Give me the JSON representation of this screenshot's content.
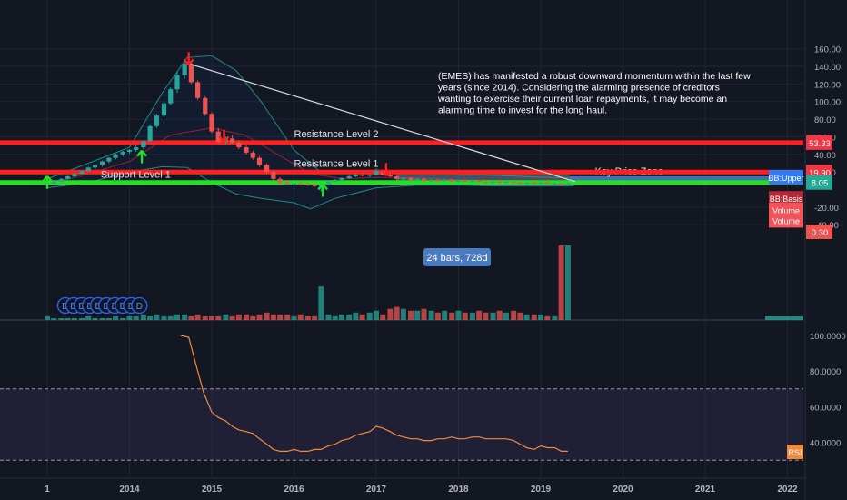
{
  "chart_data": {
    "type": "candlestick",
    "price_axis": {
      "ticks": [
        "160.00",
        "140.00",
        "120.00",
        "100.00",
        "80.00",
        "60.00",
        "40.00",
        "20.00",
        "-20.00",
        "-40.00"
      ],
      "badges": [
        {
          "label": "53.33",
          "value": 53.33,
          "color": "#f23645"
        },
        {
          "label": "19.90",
          "value": 19.9,
          "color": "#f23645"
        },
        {
          "label": "8.05",
          "value": 8.05,
          "color": "#22ab94"
        },
        {
          "label": "0.30",
          "value": -48,
          "color": "#ef5350"
        }
      ],
      "side_labels": [
        {
          "label": "BB:Upper",
          "color": "#3179f5",
          "value": 14
        },
        {
          "label": "BB:Basis",
          "color": "#b22833",
          "value": -10
        },
        {
          "label": "Volume",
          "color": "#f0545a",
          "value": -23
        },
        {
          "label": "Volume",
          "color": "#f0545a",
          "value": -35
        }
      ]
    },
    "time_axis": {
      "ticks": [
        {
          "label": "1",
          "t": 2013.0
        },
        {
          "label": "2014",
          "t": 2014.0
        },
        {
          "label": "2015",
          "t": 2015.0
        },
        {
          "label": "2016",
          "t": 2016.0
        },
        {
          "label": "2017",
          "t": 2017.0
        },
        {
          "label": "2018",
          "t": 2018.0
        },
        {
          "label": "2019",
          "t": 2019.0
        },
        {
          "label": "2020",
          "t": 2020.0
        },
        {
          "label": "2021",
          "t": 2021.0
        },
        {
          "label": "2022",
          "t": 2022.0
        }
      ]
    },
    "levels": [
      {
        "name": "Resistance Level 2",
        "value": 53.33,
        "color": "#ff1f1f"
      },
      {
        "name": "Resistance Level 1",
        "value": 19.9,
        "color": "#ff1f1f"
      },
      {
        "name": "Support Level 1",
        "value": 8.05,
        "color": "#22e022"
      }
    ],
    "zone": {
      "name": "Key Price Zone",
      "t_start": 2017.25,
      "t_end": 2019.35,
      "low": 8,
      "high": 19
    },
    "measure_label": "24 bars, 728d",
    "annotation": "(EMES) has manifested a robust downward momentum within the last few years (since 2014). Considering the alarming presence of creditors wanting to exercise their current loan repayments, it may become an alarming time to invest for the long haul.",
    "trendline": {
      "t1": 2014.72,
      "p1": 143,
      "t2": 2019.42,
      "p2": 9
    },
    "arrows_down": [
      {
        "t": 2014.72,
        "p": 150
      },
      {
        "t": 2015.15,
        "p": 62
      },
      {
        "t": 2017.12,
        "p": 24
      }
    ],
    "arrows_up": [
      {
        "t": 2013.0,
        "p": 7
      },
      {
        "t": 2014.15,
        "p": 36
      },
      {
        "t": 2016.35,
        "p": -2
      }
    ],
    "dividend_markers": {
      "label": "D",
      "t_start": 2013.22,
      "step": 0.1,
      "count": 10
    },
    "candles_monthly": [
      [
        2013.0,
        6,
        8,
        5,
        7
      ],
      [
        2013.08,
        7,
        10,
        6,
        9
      ],
      [
        2013.17,
        9,
        13,
        8,
        12
      ],
      [
        2013.25,
        12,
        16,
        11,
        15
      ],
      [
        2013.33,
        15,
        19,
        14,
        18
      ],
      [
        2013.42,
        18,
        22,
        17,
        21
      ],
      [
        2013.5,
        21,
        26,
        20,
        25
      ],
      [
        2013.58,
        25,
        29,
        23,
        28
      ],
      [
        2013.67,
        28,
        33,
        26,
        32
      ],
      [
        2013.75,
        32,
        37,
        30,
        36
      ],
      [
        2013.83,
        36,
        41,
        34,
        40
      ],
      [
        2013.92,
        40,
        44,
        38,
        43
      ],
      [
        2014.0,
        43,
        46,
        41,
        45
      ],
      [
        2014.08,
        45,
        50,
        43,
        48
      ],
      [
        2014.17,
        48,
        56,
        46,
        55
      ],
      [
        2014.25,
        55,
        74,
        53,
        72
      ],
      [
        2014.33,
        72,
        86,
        70,
        84
      ],
      [
        2014.42,
        84,
        100,
        82,
        98
      ],
      [
        2014.5,
        98,
        116,
        96,
        114
      ],
      [
        2014.58,
        114,
        134,
        110,
        130
      ],
      [
        2014.67,
        130,
        145,
        126,
        143
      ],
      [
        2014.75,
        143,
        145,
        120,
        122
      ],
      [
        2014.83,
        122,
        124,
        102,
        104
      ],
      [
        2014.92,
        104,
        106,
        84,
        86
      ],
      [
        2015.0,
        86,
        88,
        64,
        66
      ],
      [
        2015.08,
        66,
        70,
        52,
        54
      ],
      [
        2015.17,
        54,
        60,
        50,
        58
      ],
      [
        2015.25,
        58,
        62,
        52,
        53
      ],
      [
        2015.33,
        53,
        56,
        46,
        48
      ],
      [
        2015.42,
        48,
        50,
        40,
        42
      ],
      [
        2015.5,
        42,
        44,
        34,
        36
      ],
      [
        2015.58,
        36,
        38,
        26,
        28
      ],
      [
        2015.67,
        28,
        30,
        18,
        20
      ],
      [
        2015.75,
        20,
        22,
        10,
        12
      ],
      [
        2015.83,
        12,
        14,
        6,
        8
      ],
      [
        2015.92,
        8,
        10,
        5,
        6
      ],
      [
        2016.0,
        6,
        8,
        4,
        7
      ],
      [
        2016.08,
        7,
        9,
        5,
        6
      ],
      [
        2016.17,
        6,
        8,
        4,
        5
      ],
      [
        2016.25,
        5,
        7,
        3,
        4
      ],
      [
        2016.33,
        4,
        7,
        -2,
        6
      ],
      [
        2016.42,
        6,
        10,
        5,
        9
      ],
      [
        2016.5,
        9,
        12,
        8,
        11
      ],
      [
        2016.58,
        11,
        14,
        10,
        13
      ],
      [
        2016.67,
        13,
        16,
        12,
        15
      ],
      [
        2016.75,
        15,
        18,
        14,
        17
      ],
      [
        2016.83,
        17,
        19,
        15,
        16
      ],
      [
        2016.92,
        16,
        18,
        14,
        17
      ],
      [
        2017.0,
        17,
        24,
        16,
        21
      ],
      [
        2017.08,
        21,
        22,
        16,
        17
      ],
      [
        2017.17,
        17,
        19,
        14,
        15
      ],
      [
        2017.25,
        15,
        16,
        11,
        12
      ],
      [
        2017.33,
        12,
        14,
        10,
        13
      ],
      [
        2017.42,
        13,
        14,
        10,
        11
      ],
      [
        2017.5,
        11,
        13,
        9,
        12
      ],
      [
        2017.58,
        12,
        13,
        9,
        10
      ],
      [
        2017.67,
        10,
        12,
        8,
        11
      ],
      [
        2017.75,
        11,
        12,
        9,
        10
      ],
      [
        2017.83,
        10,
        12,
        8,
        11
      ],
      [
        2017.92,
        11,
        12,
        8,
        9
      ],
      [
        2018.0,
        9,
        11,
        8,
        10
      ],
      [
        2018.08,
        10,
        11,
        8,
        9
      ],
      [
        2018.17,
        9,
        11,
        7,
        10
      ],
      [
        2018.25,
        10,
        11,
        8,
        9
      ],
      [
        2018.33,
        9,
        10,
        7,
        8
      ],
      [
        2018.42,
        8,
        10,
        7,
        9
      ],
      [
        2018.5,
        9,
        10,
        7,
        8
      ],
      [
        2018.58,
        8,
        10,
        7,
        9
      ],
      [
        2018.67,
        9,
        10,
        7,
        8
      ],
      [
        2018.75,
        8,
        9,
        6,
        7
      ],
      [
        2018.83,
        7,
        9,
        6,
        8
      ],
      [
        2018.92,
        8,
        9,
        6,
        7
      ],
      [
        2019.0,
        7,
        9,
        6,
        8
      ],
      [
        2019.08,
        8,
        9,
        6,
        7
      ],
      [
        2019.17,
        7,
        8,
        6,
        7
      ],
      [
        2019.25,
        7,
        8,
        5,
        6
      ],
      [
        2019.33,
        6,
        8,
        5,
        7
      ]
    ],
    "bb_upper": [
      [
        2013.0,
        12
      ],
      [
        2013.5,
        30
      ],
      [
        2014.0,
        48
      ],
      [
        2014.4,
        110
      ],
      [
        2014.7,
        150
      ],
      [
        2015.0,
        152
      ],
      [
        2015.3,
        135
      ],
      [
        2015.6,
        100
      ],
      [
        2016.0,
        45
      ],
      [
        2016.3,
        22
      ],
      [
        2016.6,
        20
      ],
      [
        2017.0,
        22
      ],
      [
        2017.5,
        20
      ],
      [
        2018.0,
        18
      ],
      [
        2018.5,
        16
      ],
      [
        2019.0,
        14
      ],
      [
        2019.4,
        13
      ]
    ],
    "bb_basis": [
      [
        2013.0,
        6
      ],
      [
        2013.5,
        18
      ],
      [
        2014.0,
        32
      ],
      [
        2014.5,
        62
      ],
      [
        2015.0,
        70
      ],
      [
        2015.4,
        62
      ],
      [
        2015.8,
        40
      ],
      [
        2016.2,
        18
      ],
      [
        2016.6,
        12
      ],
      [
        2017.0,
        14
      ],
      [
        2017.5,
        13
      ],
      [
        2018.0,
        11
      ],
      [
        2018.5,
        10
      ],
      [
        2019.0,
        8
      ],
      [
        2019.4,
        8
      ]
    ],
    "bb_lower": [
      [
        2013.0,
        2
      ],
      [
        2013.5,
        8
      ],
      [
        2014.0,
        20
      ],
      [
        2014.4,
        26
      ],
      [
        2014.7,
        25
      ],
      [
        2015.0,
        8
      ],
      [
        2015.3,
        -5
      ],
      [
        2015.6,
        -10
      ],
      [
        2016.0,
        -15
      ],
      [
        2016.2,
        -22
      ],
      [
        2016.5,
        -10
      ],
      [
        2017.0,
        2
      ],
      [
        2017.5,
        5
      ],
      [
        2018.0,
        5
      ],
      [
        2018.5,
        4
      ],
      [
        2019.0,
        4
      ],
      [
        2019.4,
        4
      ]
    ],
    "volume": [
      2,
      1,
      1,
      1,
      1,
      1,
      2,
      1,
      1,
      1,
      2,
      1,
      2,
      2,
      3,
      2,
      3,
      2,
      2,
      3,
      3,
      2,
      3,
      2,
      2,
      2,
      3,
      2,
      3,
      3,
      2,
      3,
      4,
      3,
      3,
      3,
      2,
      3,
      2,
      2,
      18,
      3,
      2,
      3,
      3,
      4,
      3,
      4,
      5,
      3,
      6,
      7,
      6,
      5,
      5,
      6,
      5,
      4,
      5,
      4,
      5,
      4,
      4,
      5,
      4,
      4,
      5,
      4,
      5,
      4,
      3,
      3,
      3,
      2,
      2,
      40,
      40
    ],
    "rsi": {
      "label": "RSI",
      "ticks": [
        "100.0000",
        "80.0000",
        "60.0000",
        "40.0000"
      ],
      "upper": 70,
      "lower": 30,
      "values": [
        [
          2014.62,
          100
        ],
        [
          2014.72,
          99
        ],
        [
          2014.8,
          85
        ],
        [
          2014.9,
          68
        ],
        [
          2015.0,
          57
        ],
        [
          2015.08,
          54
        ],
        [
          2015.17,
          52
        ],
        [
          2015.25,
          49
        ],
        [
          2015.33,
          47
        ],
        [
          2015.42,
          46
        ],
        [
          2015.5,
          45
        ],
        [
          2015.58,
          42
        ],
        [
          2015.67,
          39
        ],
        [
          2015.75,
          36
        ],
        [
          2015.83,
          35
        ],
        [
          2015.92,
          35
        ],
        [
          2016.0,
          36
        ],
        [
          2016.08,
          35
        ],
        [
          2016.17,
          35
        ],
        [
          2016.25,
          36
        ],
        [
          2016.33,
          36
        ],
        [
          2016.42,
          38
        ],
        [
          2016.5,
          39
        ],
        [
          2016.58,
          41
        ],
        [
          2016.67,
          42
        ],
        [
          2016.75,
          44
        ],
        [
          2016.83,
          45
        ],
        [
          2016.92,
          46
        ],
        [
          2017.0,
          49
        ],
        [
          2017.08,
          48
        ],
        [
          2017.17,
          46
        ],
        [
          2017.25,
          44
        ],
        [
          2017.33,
          43
        ],
        [
          2017.42,
          42
        ],
        [
          2017.5,
          42
        ],
        [
          2017.58,
          41
        ],
        [
          2017.67,
          41
        ],
        [
          2017.75,
          42
        ],
        [
          2017.83,
          42
        ],
        [
          2017.92,
          43
        ],
        [
          2018.0,
          42
        ],
        [
          2018.08,
          42
        ],
        [
          2018.17,
          43
        ],
        [
          2018.25,
          43
        ],
        [
          2018.33,
          42
        ],
        [
          2018.42,
          42
        ],
        [
          2018.5,
          42
        ],
        [
          2018.58,
          42
        ],
        [
          2018.67,
          41
        ],
        [
          2018.75,
          39
        ],
        [
          2018.83,
          37
        ],
        [
          2018.92,
          36
        ],
        [
          2019.0,
          38
        ],
        [
          2019.08,
          37
        ],
        [
          2019.17,
          37
        ],
        [
          2019.25,
          35
        ],
        [
          2019.33,
          35
        ]
      ]
    }
  }
}
